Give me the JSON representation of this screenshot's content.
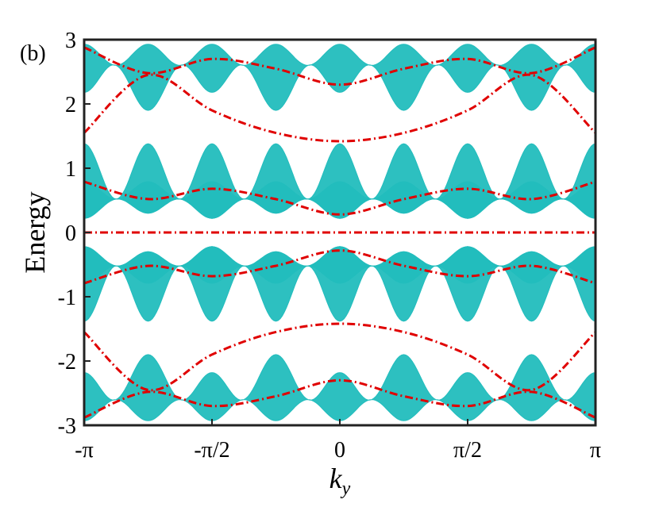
{
  "chart_data": {
    "type": "line",
    "panel_label": "(b)",
    "xlabel": "k",
    "xlabel_sub": "y",
    "ylabel": "Energy",
    "xlim": [
      -3.14159,
      3.14159
    ],
    "ylim": [
      -3,
      3
    ],
    "x_ticks": [
      {
        "value": -3.14159,
        "label": "-π"
      },
      {
        "value": -1.5708,
        "label": "-π/2"
      },
      {
        "value": 0,
        "label": "0"
      },
      {
        "value": 1.5708,
        "label": "π/2"
      },
      {
        "value": 3.14159,
        "label": "π"
      }
    ],
    "y_ticks": [
      {
        "value": 3,
        "label": "3"
      },
      {
        "value": 2,
        "label": "2"
      },
      {
        "value": 1,
        "label": "1"
      },
      {
        "value": 0,
        "label": "0"
      },
      {
        "value": -1,
        "label": "-1"
      },
      {
        "value": -2,
        "label": "-2"
      },
      {
        "value": -3,
        "label": "-3"
      }
    ],
    "bulk_color": "#22bdbd",
    "edge_color": "#e00000",
    "bulk_bands": [
      {
        "a": [
          2.93,
          2.18
        ],
        "b": [
          2.6,
          2.6
        ],
        "c": [
          2.93,
          1.9
        ]
      },
      {
        "a": [
          0.79,
          0.22
        ],
        "b": [
          0.52,
          0.52
        ],
        "c": [
          0.79,
          0.3
        ]
      },
      {
        "a": [
          0.22,
          1.38
        ],
        "b": [
          0.52,
          0.52
        ],
        "c": [
          0.3,
          1.38
        ]
      }
    ],
    "edge_states": [
      {
        "x": [
          -3.14159,
          -2.36,
          -1.5708,
          -0.79,
          0,
          0.79,
          1.5708,
          2.36,
          3.14159
        ],
        "y": [
          2.88,
          2.48,
          2.7,
          2.55,
          2.3,
          2.55,
          2.7,
          2.48,
          2.88
        ]
      },
      {
        "x": [
          -3.14159,
          -2.36,
          -1.5708,
          -0.79,
          0,
          0.79,
          1.5708,
          2.36,
          3.14159
        ],
        "y": [
          1.55,
          2.45,
          1.9,
          1.55,
          1.42,
          1.55,
          1.9,
          2.45,
          1.55
        ]
      },
      {
        "x": [
          -3.14159,
          -2.36,
          -1.5708,
          -0.79,
          0,
          0.79,
          1.5708,
          2.36,
          3.14159
        ],
        "y": [
          0.79,
          0.52,
          0.68,
          0.52,
          0.28,
          0.52,
          0.68,
          0.52,
          0.79
        ]
      },
      {
        "x": [
          -3.14159,
          3.14159
        ],
        "y": [
          0,
          0
        ]
      }
    ]
  }
}
